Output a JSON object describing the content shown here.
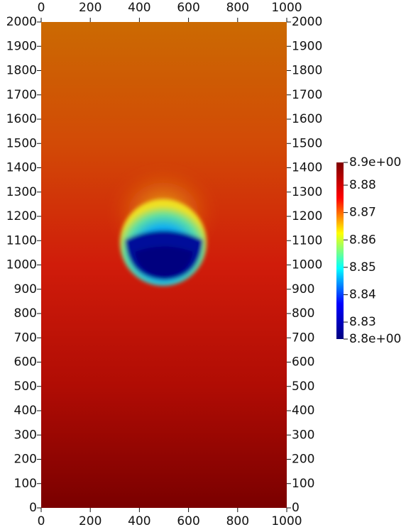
{
  "chart_data": {
    "type": "heatmap",
    "xlim": [
      0,
      1000
    ],
    "xticks": [
      0,
      200,
      400,
      600,
      800,
      1000
    ],
    "ylim": [
      0,
      2000
    ],
    "yticks": [
      0,
      100,
      200,
      300,
      400,
      500,
      600,
      700,
      800,
      900,
      1000,
      1100,
      1200,
      1300,
      1400,
      1500,
      1600,
      1700,
      1800,
      1900,
      2000
    ],
    "colorbar": {
      "lim": [
        8.8238,
        8.8883
      ],
      "ticks": [
        {
          "value": 8.8883,
          "label": "8.9e+00"
        },
        8.88,
        8.87,
        8.86,
        8.85,
        8.84,
        8.83,
        {
          "value": 8.8238,
          "label": "8.8e+00"
        }
      ],
      "colormap": [
        "#00007f",
        "#0000ff",
        "#00ffff",
        "#ffff00",
        "#ff0000",
        "#7f0000"
      ]
    }
  }
}
